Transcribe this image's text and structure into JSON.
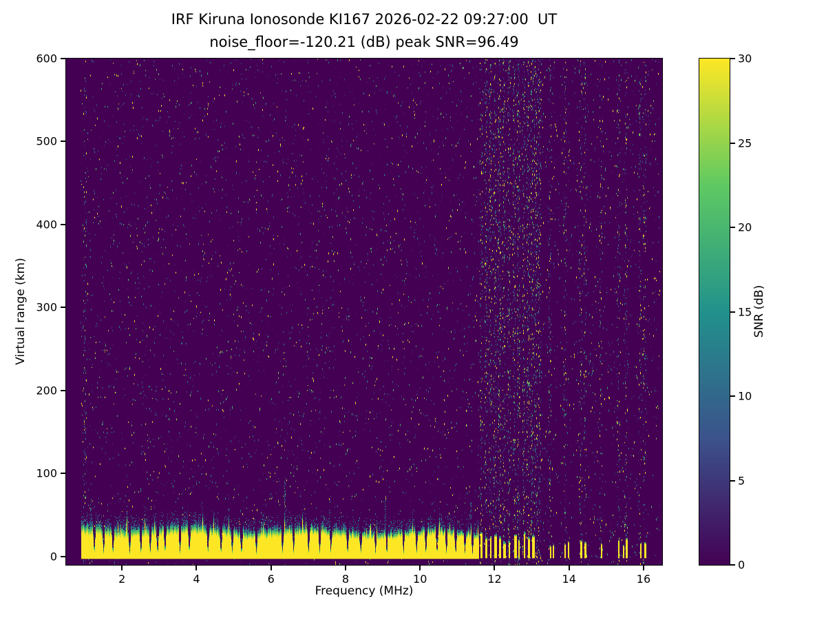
{
  "chart_data": {
    "type": "heatmap",
    "title_line1": "IRF Kiruna Ionosonde KI167 2026-02-22 09:27:00  UT",
    "title_line2": "noise_floor=-120.21 (dB) peak SNR=96.49",
    "station": "IRF Kiruna Ionosonde KI167",
    "timestamp_ut": "2026-02-22 09:27:00 UT",
    "noise_floor_db": -120.21,
    "peak_snr_db": 96.49,
    "xlabel": "Frequency (MHz)",
    "ylabel": "Virtual range (km)",
    "xlim": [
      0.5,
      16.5
    ],
    "ylim": [
      -10,
      600
    ],
    "xticks": [
      2,
      4,
      6,
      8,
      10,
      12,
      14,
      16
    ],
    "yticks": [
      0,
      100,
      200,
      300,
      400,
      500,
      600
    ],
    "grid": false,
    "colorbar": {
      "label": "SNR (dB)",
      "min": 0,
      "max": 30,
      "ticks": [
        0,
        5,
        10,
        15,
        20,
        25,
        30
      ],
      "colormap": "viridis",
      "stops": [
        [
          0,
          "#440154"
        ],
        [
          0.25,
          "#3b528b"
        ],
        [
          0.5,
          "#21918c"
        ],
        [
          0.75,
          "#5ec962"
        ],
        [
          1,
          "#fde725"
        ]
      ]
    },
    "features": {
      "data_freq_range_mhz": [
        0.88,
        16.42
      ],
      "ground_band": {
        "freq_range_mhz": [
          0.9,
          11.57
        ],
        "base_km": -2,
        "top_mean_km": 26,
        "fringe_km": 12,
        "notch_freqs_mhz": [
          1.25,
          1.5,
          1.75,
          2.2,
          2.5,
          2.75,
          2.95,
          3.15,
          3.55,
          3.8,
          4.3,
          4.65,
          4.95,
          5.2,
          5.6,
          6.3,
          6.6,
          7.0,
          7.3,
          7.6,
          8.05,
          8.4,
          8.8,
          9.1,
          9.55,
          9.9,
          10.15,
          10.45,
          10.7,
          10.95,
          11.2,
          11.4
        ]
      },
      "rfi_bursts": {
        "freq_range_mhz": [
          11.6,
          13.05
        ],
        "stripe_freqs_mhz": [
          11.63,
          11.76,
          11.88,
          12.0,
          12.12,
          12.24,
          12.38,
          12.52,
          12.64,
          12.78,
          12.9,
          13.0
        ],
        "stripe_top_km_range": [
          14,
          28
        ]
      },
      "sparse_stripes_mhz": [
        13.48,
        13.56,
        13.88,
        13.97,
        14.3,
        14.42,
        14.85,
        15.32,
        15.45,
        15.52,
        15.9,
        16.02
      ],
      "vertical_streak_freqs_mhz": [
        1.0,
        11.63,
        11.76,
        11.88,
        12.0,
        12.12,
        12.24,
        12.38,
        12.52,
        12.64,
        12.78,
        12.9,
        13.0,
        13.1,
        13.2,
        13.48,
        13.88,
        14.3,
        14.42,
        14.85,
        15.32,
        15.52,
        15.9,
        16.02
      ],
      "echo_spurs": [
        {
          "freq_mhz": 1.15,
          "top_km": 70
        },
        {
          "freq_mhz": 6.35,
          "top_km": 95
        },
        {
          "freq_mhz": 7.55,
          "top_km": 60
        },
        {
          "freq_mhz": 9.05,
          "top_km": 75
        },
        {
          "freq_mhz": 11.35,
          "top_km": 65
        }
      ],
      "noise_speckle": {
        "per_column": 7,
        "snr_low_db": 2,
        "snr_high_db": 14
      }
    }
  }
}
